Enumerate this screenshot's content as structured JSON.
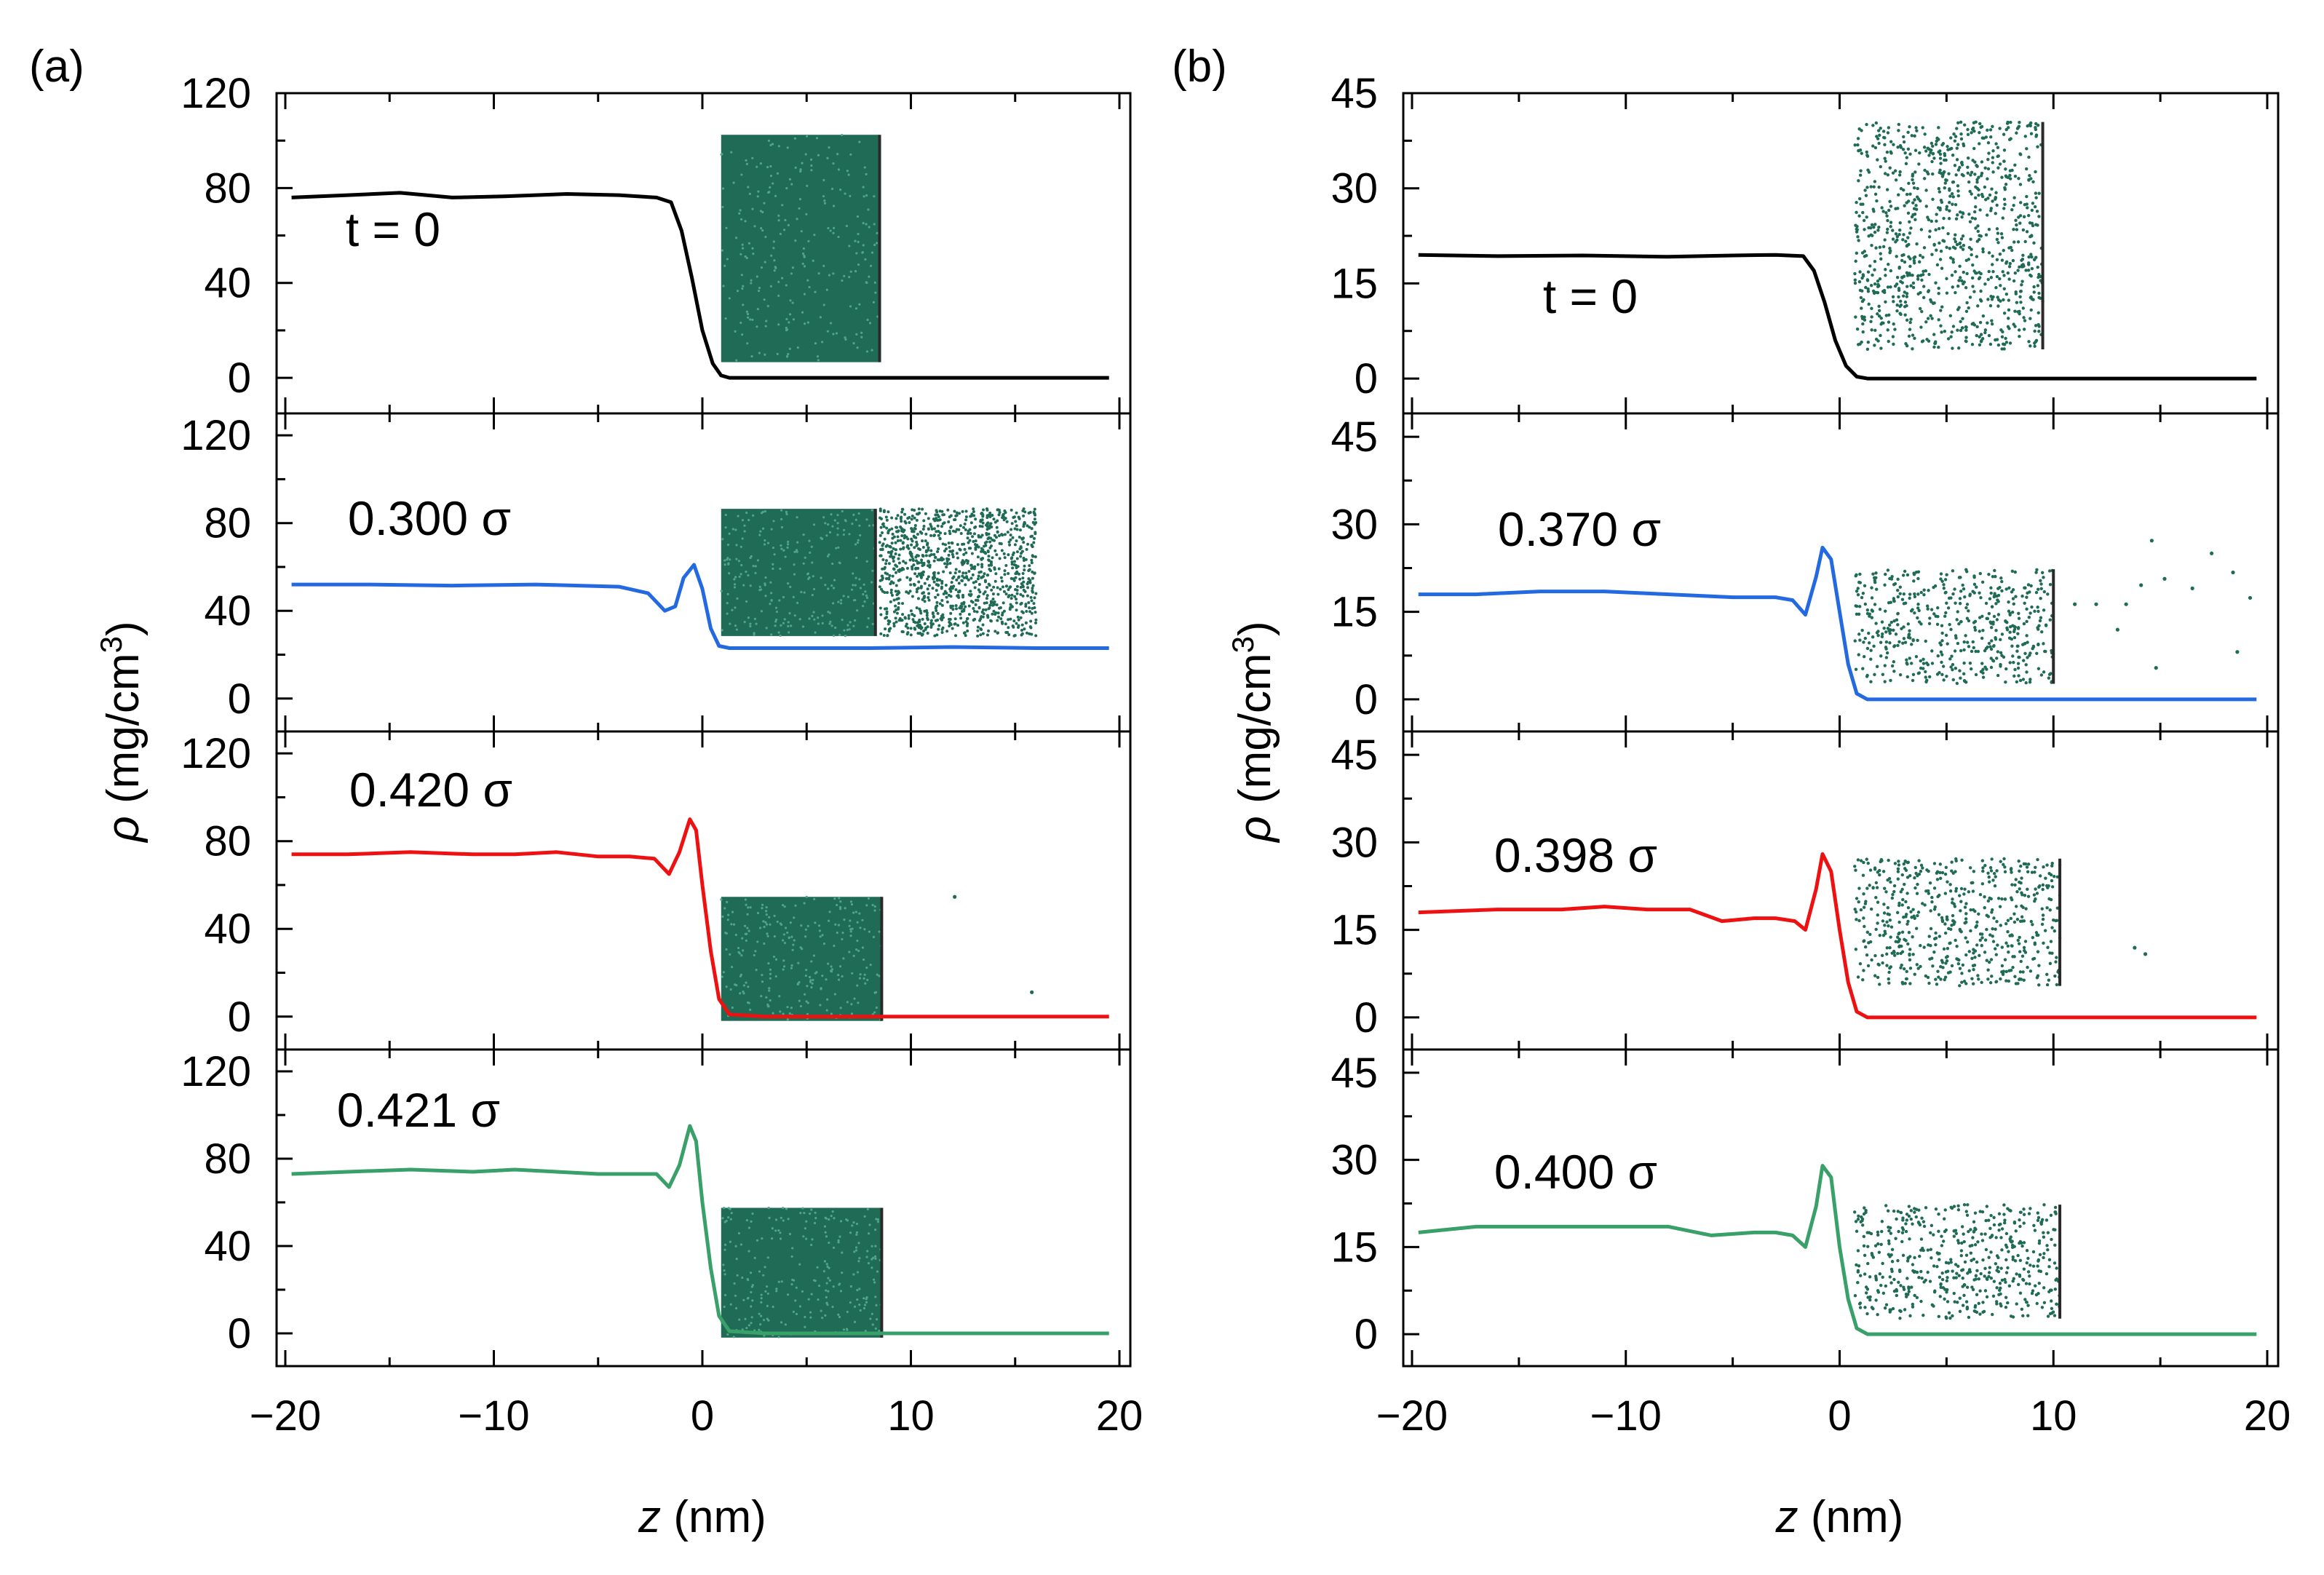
{
  "chart_data": [
    {
      "type": "line",
      "panel_label": "(a)",
      "xlabel_italic": "z",
      "xlabel_rest": " (nm)",
      "xlim": [
        -20,
        20
      ],
      "x_ticks": [
        "−20",
        "−10",
        "0",
        "10",
        "20"
      ],
      "ylabel_symbol": "ρ",
      "ylabel_unit": " (mg/cm",
      "ylabel_exp": "3",
      "ylabel_close": ")",
      "grid": false,
      "subplots": [
        {
          "label": "t = 0",
          "color": "#000000",
          "ylim": [
            -15,
            120
          ],
          "yticks": [
            "0",
            "40",
            "80",
            "120"
          ],
          "x": [
            -19.7,
            -17,
            -14.5,
            -12,
            -9.5,
            -6.5,
            -4,
            -2.2,
            -1.5,
            -1.0,
            -0.5,
            0,
            0.5,
            0.9,
            1.3,
            3,
            10,
            19.5
          ],
          "y": [
            76,
            77,
            78,
            76,
            76.5,
            77.5,
            77,
            76,
            74,
            62,
            42,
            20,
            6,
            1,
            0,
            0,
            0,
            0
          ]
        },
        {
          "label": "0.300 σ",
          "color": "#2469e0",
          "ylim": [
            -15,
            130
          ],
          "yticks": [
            "0",
            "40",
            "80",
            "120"
          ],
          "x": [
            -19.7,
            -16,
            -12,
            -8,
            -4,
            -2.6,
            -1.8,
            -1.3,
            -0.9,
            -0.4,
            0,
            0.4,
            0.8,
            1.3,
            3,
            8,
            12,
            16,
            19.5
          ],
          "y": [
            52,
            52,
            51.5,
            52,
            51,
            48,
            40,
            42,
            55,
            61,
            50,
            32,
            24,
            23,
            23,
            23,
            23.5,
            23,
            23
          ]
        },
        {
          "label": "0.420 σ",
          "color": "#ee1111",
          "ylim": [
            -15,
            130
          ],
          "yticks": [
            "0",
            "40",
            "80",
            "120"
          ],
          "x": [
            -19.7,
            -17,
            -14,
            -11,
            -9,
            -7,
            -5,
            -3.5,
            -2.3,
            -1.6,
            -1.1,
            -0.6,
            -0.3,
            0,
            0.4,
            0.8,
            1.3,
            3,
            10,
            19.5
          ],
          "y": [
            74,
            74,
            75,
            74,
            74,
            75,
            73,
            73,
            72,
            65,
            75,
            90,
            85,
            60,
            30,
            8,
            1,
            0,
            0,
            0
          ]
        },
        {
          "label": "0.421 σ",
          "color": "#3aa06a",
          "ylim": [
            -15,
            130
          ],
          "yticks": [
            "0",
            "40",
            "80",
            "120"
          ],
          "x": [
            -19.7,
            -17,
            -14,
            -11,
            -9,
            -7,
            -5,
            -3,
            -2.2,
            -1.6,
            -1.1,
            -0.6,
            -0.3,
            0,
            0.4,
            0.8,
            1.3,
            3,
            10,
            19.5
          ],
          "y": [
            73,
            74,
            75,
            74,
            75,
            74,
            73,
            73,
            73,
            67,
            77,
            95,
            88,
            60,
            30,
            8,
            1,
            0,
            0,
            0
          ]
        }
      ]
    },
    {
      "type": "line",
      "panel_label": "(b)",
      "xlabel_italic": "z",
      "xlabel_rest": " (nm)",
      "xlim": [
        -20,
        20
      ],
      "x_ticks": [
        "−20",
        "−10",
        "0",
        "10",
        "20"
      ],
      "ylabel_symbol": "ρ",
      "ylabel_unit": " (mg/cm",
      "ylabel_exp": "3",
      "ylabel_close": ")",
      "grid": false,
      "subplots": [
        {
          "label": "t = 0",
          "color": "#000000",
          "ylim": [
            -5.5,
            45
          ],
          "yticks": [
            "0",
            "15",
            "30",
            "45"
          ],
          "x": [
            -19.7,
            -16,
            -12,
            -8,
            -5,
            -3,
            -1.7,
            -1.2,
            -0.7,
            -0.2,
            0.3,
            0.8,
            1.3,
            5,
            19.5
          ],
          "y": [
            19.5,
            19.3,
            19.4,
            19.2,
            19.4,
            19.5,
            19.3,
            17,
            12,
            6,
            2,
            0.3,
            0,
            0,
            0
          ]
        },
        {
          "label": "0.370 σ",
          "color": "#2469e0",
          "ylim": [
            -5.5,
            49
          ],
          "yticks": [
            "0",
            "15",
            "30",
            "45"
          ],
          "x": [
            -19.7,
            -17,
            -14,
            -11,
            -8,
            -5,
            -3,
            -2.2,
            -1.6,
            -1.1,
            -0.8,
            -0.4,
            0,
            0.4,
            0.8,
            1.3,
            5,
            19.5
          ],
          "y": [
            18,
            18,
            18.5,
            18.5,
            18,
            17.5,
            17.5,
            17,
            14.5,
            21,
            26,
            24,
            15,
            6,
            1,
            0,
            0,
            0
          ]
        },
        {
          "label": "0.398 σ",
          "color": "#ee1111",
          "ylim": [
            -5.5,
            49
          ],
          "yticks": [
            "0",
            "15",
            "30",
            "45"
          ],
          "x": [
            -19.7,
            -16,
            -13,
            -11,
            -9,
            -7,
            -5.5,
            -4,
            -3,
            -2.1,
            -1.6,
            -1.1,
            -0.8,
            -0.4,
            0,
            0.4,
            0.8,
            1.3,
            5,
            19.5
          ],
          "y": [
            18,
            18.5,
            18.5,
            19,
            18.5,
            18.5,
            16.5,
            17,
            17,
            16.5,
            15,
            22,
            28,
            25,
            15,
            6,
            1,
            0,
            0,
            0
          ]
        },
        {
          "label": "0.400 σ",
          "color": "#3aa06a",
          "ylim": [
            -5.5,
            49
          ],
          "yticks": [
            "0",
            "15",
            "30",
            "45"
          ],
          "x": [
            -19.7,
            -17,
            -14,
            -11,
            -8,
            -6,
            -4,
            -3,
            -2.2,
            -1.6,
            -1.1,
            -0.8,
            -0.4,
            0,
            0.4,
            0.8,
            1.3,
            5,
            19.5
          ],
          "y": [
            17.5,
            18.5,
            18.5,
            18.5,
            18.5,
            17,
            17.5,
            17.5,
            17,
            15,
            22,
            29,
            27,
            15,
            6,
            1,
            0,
            0,
            0
          ]
        }
      ]
    }
  ],
  "colors": {
    "particle_fill": "#1f6b55",
    "box_edge": "#2a2a2a"
  }
}
